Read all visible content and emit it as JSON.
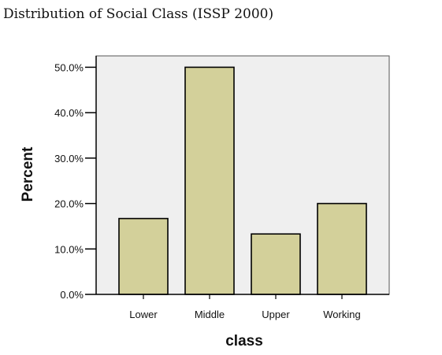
{
  "chart_data": {
    "type": "bar",
    "title": "Distribution of Social Class (ISSP 2000)",
    "xlabel": "class",
    "ylabel": "Percent",
    "categories": [
      "Lower",
      "Middle",
      "Upper",
      "Working"
    ],
    "values": [
      16.7,
      50.0,
      13.3,
      20.0
    ],
    "ylim": [
      0,
      52.5
    ],
    "yticks": [
      0,
      10,
      20,
      30,
      40,
      50
    ],
    "ytick_labels": [
      "0.0%",
      "10.0%",
      "20.0%",
      "30.0%",
      "40.0%",
      "50.0%"
    ],
    "grid": false,
    "legend": "none",
    "colors": {
      "bar_fill": "#d3d09a",
      "bar_stroke": "#000000",
      "plot_background": "#efefef",
      "frame": "#555555"
    }
  }
}
